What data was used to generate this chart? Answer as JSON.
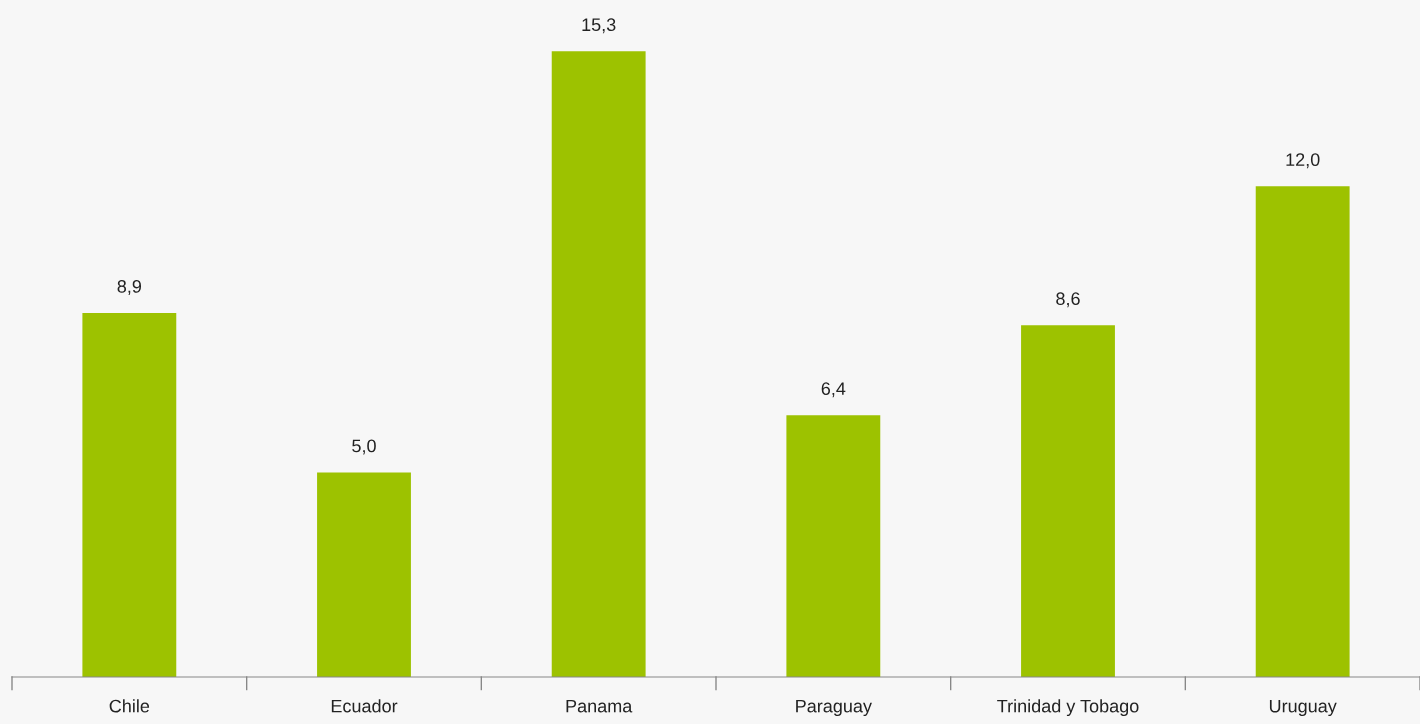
{
  "chart_data": {
    "type": "bar",
    "categories": [
      "Chile",
      "Ecuador",
      "Panama",
      "Paraguay",
      "Trinidad y Tobago",
      "Uruguay"
    ],
    "values": [
      8.9,
      5.0,
      15.3,
      6.4,
      8.6,
      12.0
    ],
    "value_labels": [
      "8,9",
      "5,0",
      "15,3",
      "6,4",
      "8,6",
      "12,0"
    ],
    "color": "#9dc200",
    "grid": false,
    "legend": false
  }
}
